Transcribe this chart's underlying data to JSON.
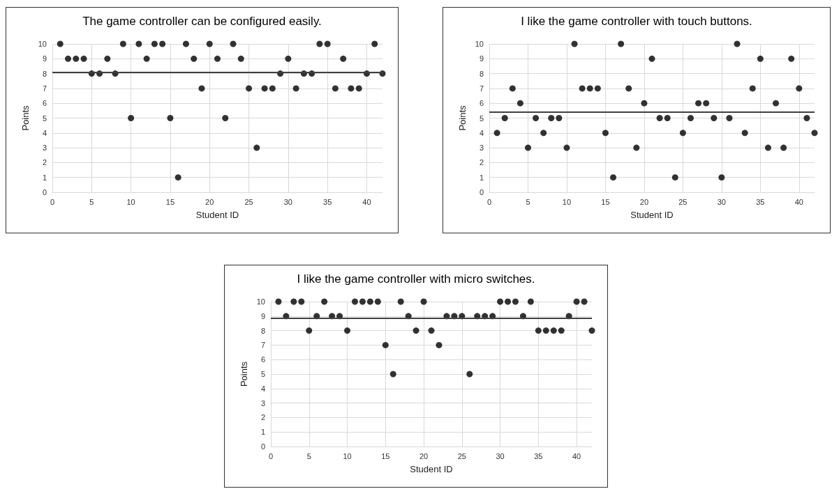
{
  "chart_data": [
    {
      "type": "scatter",
      "title": "The game controller can be configured easily.",
      "xlabel": "Student ID",
      "ylabel": "Points",
      "x": [
        1,
        2,
        3,
        4,
        5,
        6,
        7,
        8,
        9,
        10,
        11,
        12,
        13,
        14,
        15,
        16,
        17,
        18,
        19,
        20,
        21,
        22,
        23,
        24,
        25,
        26,
        27,
        28,
        29,
        30,
        31,
        32,
        33,
        34,
        35,
        36,
        37,
        38,
        39,
        40,
        41,
        42
      ],
      "series": [
        {
          "color": "#000000",
          "values": [
            10,
            9,
            9,
            9,
            8,
            8,
            9,
            8,
            10,
            5,
            10,
            9,
            10,
            10,
            5,
            1,
            10,
            9,
            7,
            10,
            9,
            5,
            10,
            9,
            7,
            3,
            7,
            7,
            8,
            9,
            7,
            8,
            8,
            10,
            10,
            7,
            9,
            7,
            7,
            8,
            10,
            8
          ]
        }
      ],
      "ref_lines": [
        {
          "axis": "y",
          "value": 8.07,
          "color": "#404040"
        }
      ],
      "xlim": [
        0,
        42
      ],
      "xticks": [
        0,
        5,
        10,
        15,
        20,
        25,
        30,
        35,
        40
      ],
      "ylim": [
        0,
        10
      ],
      "yticks": [
        0,
        1,
        2,
        3,
        4,
        5,
        6,
        7,
        8,
        9,
        10
      ],
      "grid": true,
      "marker": "circle"
    },
    {
      "type": "scatter",
      "title": "I like the game controller with touch buttons.",
      "xlabel": "Student ID",
      "ylabel": "Points",
      "x": [
        1,
        2,
        3,
        4,
        5,
        6,
        7,
        8,
        9,
        10,
        11,
        12,
        13,
        14,
        15,
        16,
        17,
        18,
        19,
        20,
        21,
        22,
        23,
        24,
        25,
        26,
        27,
        28,
        29,
        30,
        31,
        32,
        33,
        34,
        35,
        36,
        37,
        38,
        39,
        40,
        41,
        42
      ],
      "series": [
        {
          "color": "#000000",
          "values": [
            4,
            5,
            7,
            6,
            3,
            5,
            4,
            5,
            5,
            3,
            10,
            7,
            7,
            7,
            4,
            1,
            10,
            7,
            3,
            6,
            9,
            5,
            5,
            1,
            4,
            5,
            6,
            6,
            5,
            1,
            5,
            10,
            4,
            7,
            9,
            3,
            6,
            3,
            9,
            7,
            5,
            4
          ]
        }
      ],
      "ref_lines": [
        {
          "axis": "y",
          "value": 5.43,
          "color": "#404040"
        }
      ],
      "xlim": [
        0,
        42
      ],
      "xticks": [
        0,
        5,
        10,
        15,
        20,
        25,
        30,
        35,
        40
      ],
      "ylim": [
        0,
        10
      ],
      "yticks": [
        0,
        1,
        2,
        3,
        4,
        5,
        6,
        7,
        8,
        9,
        10
      ],
      "grid": true,
      "marker": "circle"
    },
    {
      "type": "scatter",
      "title": "I like the game controller with micro switches.",
      "xlabel": "Student ID",
      "ylabel": "Points",
      "x": [
        1,
        2,
        3,
        4,
        5,
        6,
        7,
        8,
        9,
        10,
        11,
        12,
        13,
        14,
        15,
        16,
        17,
        18,
        19,
        20,
        21,
        22,
        23,
        24,
        25,
        26,
        27,
        28,
        29,
        30,
        31,
        32,
        33,
        34,
        35,
        36,
        37,
        38,
        39,
        40,
        41,
        42
      ],
      "series": [
        {
          "color": "#000000",
          "values": [
            10,
            9,
            10,
            10,
            8,
            9,
            10,
            9,
            9,
            8,
            10,
            10,
            10,
            10,
            7,
            5,
            10,
            9,
            8,
            10,
            8,
            7,
            9,
            9,
            9,
            5,
            9,
            9,
            9,
            10,
            10,
            10,
            9,
            10,
            8,
            8,
            8,
            8,
            9,
            10,
            10,
            8
          ]
        }
      ],
      "ref_lines": [
        {
          "axis": "y",
          "value": 8.88,
          "color": "#404040"
        }
      ],
      "xlim": [
        0,
        42
      ],
      "xticks": [
        0,
        5,
        10,
        15,
        20,
        25,
        30,
        35,
        40
      ],
      "ylim": [
        0,
        10
      ],
      "yticks": [
        0,
        1,
        2,
        3,
        4,
        5,
        6,
        7,
        8,
        9,
        10
      ],
      "grid": true,
      "marker": "circle"
    }
  ]
}
